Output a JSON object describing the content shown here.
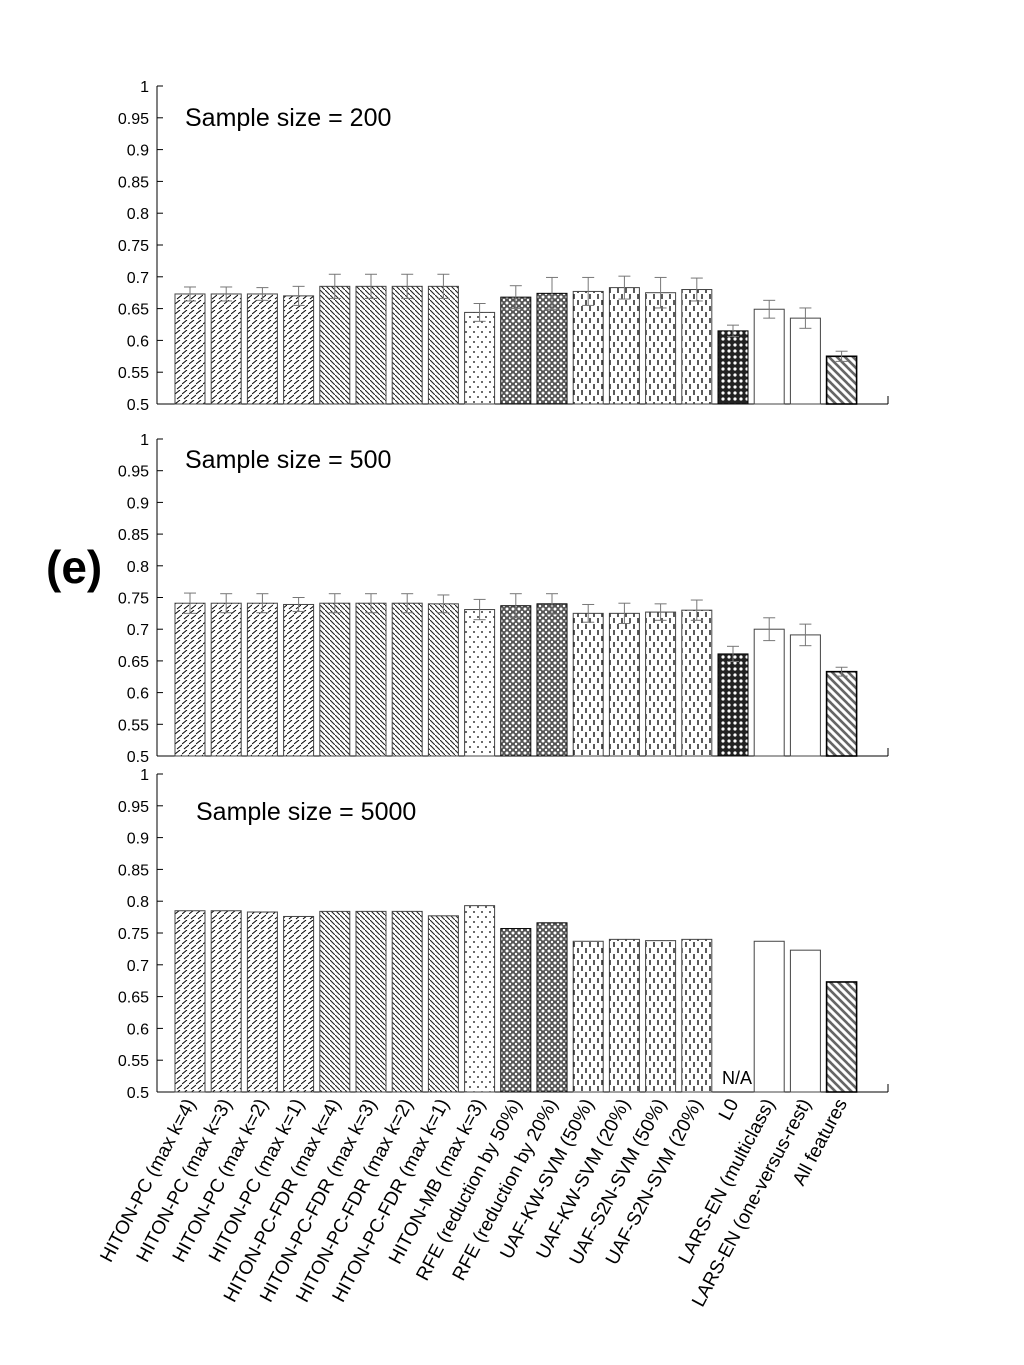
{
  "panel_label": "(e)",
  "chart_data": [
    {
      "type": "bar",
      "title": "Sample size = 200",
      "ylim": [
        0.5,
        1
      ],
      "yticks": [
        "0.5",
        "0.55",
        "0.6",
        "0.65",
        "0.7",
        "0.75",
        "0.8",
        "0.85",
        "0.9",
        "0.95",
        "1"
      ],
      "values": [
        0.673,
        0.673,
        0.673,
        0.67,
        0.685,
        0.685,
        0.685,
        0.685,
        0.644,
        0.668,
        0.674,
        0.677,
        0.683,
        0.675,
        0.68,
        0.615,
        0.649,
        0.635,
        0.575
      ],
      "errors": [
        0.011,
        0.011,
        0.01,
        0.015,
        0.019,
        0.019,
        0.019,
        0.019,
        0.014,
        0.018,
        0.025,
        0.022,
        0.018,
        0.024,
        0.018,
        0.009,
        0.014,
        0.016,
        0.008
      ],
      "na_label": ""
    },
    {
      "type": "bar",
      "title": "Sample size = 500",
      "ylim": [
        0.5,
        1
      ],
      "yticks": [
        "0.5",
        "0.55",
        "0.6",
        "0.65",
        "0.7",
        "0.75",
        "0.8",
        "0.85",
        "0.9",
        "0.95",
        "1"
      ],
      "values": [
        0.741,
        0.741,
        0.741,
        0.739,
        0.741,
        0.741,
        0.741,
        0.74,
        0.731,
        0.737,
        0.74,
        0.725,
        0.725,
        0.727,
        0.73,
        0.661,
        0.7,
        0.691,
        0.633
      ],
      "errors": [
        0.016,
        0.015,
        0.015,
        0.011,
        0.015,
        0.015,
        0.015,
        0.014,
        0.016,
        0.019,
        0.016,
        0.014,
        0.016,
        0.013,
        0.016,
        0.012,
        0.018,
        0.017,
        0.007
      ],
      "na_label": ""
    },
    {
      "type": "bar",
      "title": "Sample size = 5000",
      "ylim": [
        0.5,
        1
      ],
      "yticks": [
        "0.5",
        "0.55",
        "0.6",
        "0.65",
        "0.7",
        "0.75",
        "0.8",
        "0.85",
        "0.9",
        "0.95",
        "1"
      ],
      "values": [
        0.785,
        0.785,
        0.783,
        0.776,
        0.784,
        0.784,
        0.784,
        0.777,
        0.793,
        0.757,
        0.766,
        0.737,
        0.74,
        0.738,
        0.74,
        null,
        0.737,
        0.723,
        0.673
      ],
      "errors": [
        0,
        0,
        0,
        0,
        0,
        0,
        0,
        0,
        0,
        0,
        0,
        0,
        0,
        0,
        0,
        0,
        0,
        0,
        0
      ],
      "na_label": "N/A"
    }
  ],
  "categories": [
    "HITON-PC (max k=4)",
    "HITON-PC (max k=3)",
    "HITON-PC (max k=2)",
    "HITON-PC (max k=1)",
    "HITON-PC-FDR (max k=4)",
    "HITON-PC-FDR (max k=3)",
    "HITON-PC-FDR (max k=2)",
    "HITON-PC-FDR (max k=1)",
    "HITON-MB (max k=3)",
    "RFE (reduction by 50%)",
    "RFE (reduction by 20%)",
    "UAF-KW-SVM (50%)",
    "UAF-KW-SVM (20%)",
    "UAF-S2N-SVM (50%)",
    "UAF-S2N-SVM (20%)",
    "L0",
    "LARS-EN (multiclass)",
    "LARS-EN (one-versus-rest)",
    "All features"
  ],
  "bar_patterns": [
    "hiton",
    "hiton",
    "hiton",
    "hiton",
    "fdr",
    "fdr",
    "fdr",
    "fdr",
    "mb",
    "rfe",
    "rfe",
    "uaf",
    "uaf",
    "uaf",
    "uaf",
    "l0",
    "lars",
    "lars",
    "all"
  ],
  "colors": {
    "bar_edge": "#000000",
    "error_bar": "#777777",
    "axis": "#000000"
  }
}
